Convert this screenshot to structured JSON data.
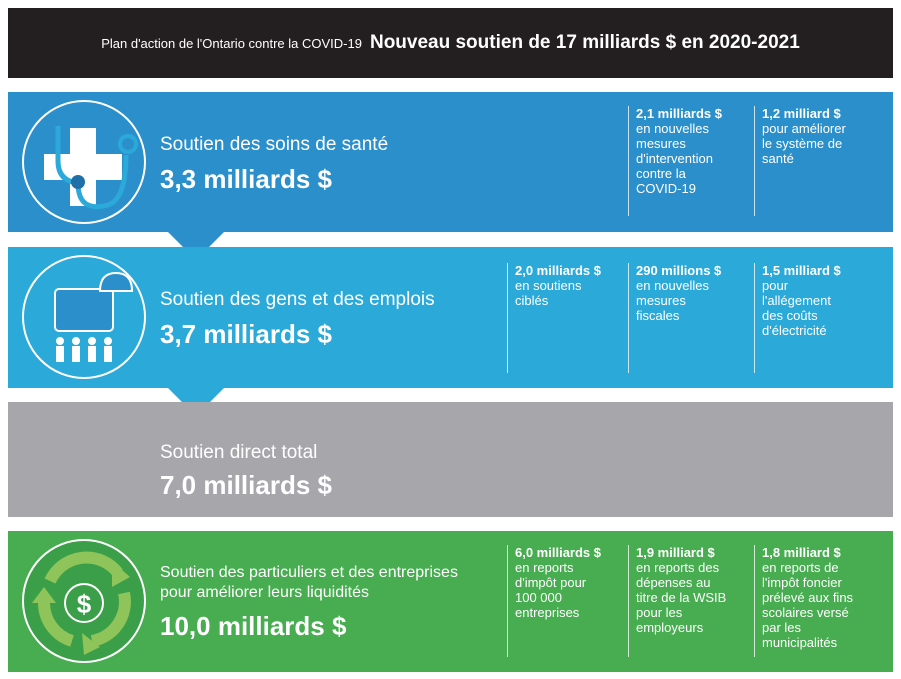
{
  "header": {
    "subtitle": "Plan d'action de l'Ontario contre la COVID-19",
    "title": "Nouveau soutien de 17 milliards $ en 2020-2021"
  },
  "colors": {
    "health": "#2b8fcb",
    "people": "#2ba9d9",
    "direct": "#a7a7ab",
    "liquidity": "#47ad50",
    "header": "#231f20"
  },
  "sections": [
    {
      "icon": "stethoscope-cross-icon",
      "label": "Soutien des soins de santé",
      "amount": "3,3 milliards $",
      "items": [
        {
          "amount": "2,1 milliards $",
          "text": "en nouvelles\nmesures\nd'intervention\ncontre la\nCOVID-19"
        },
        {
          "amount": "1,2 milliard $",
          "text": "pour améliorer\nle système de\nsanté"
        }
      ]
    },
    {
      "icon": "briefcase-people-icon",
      "label": "Soutien des gens et des emplois",
      "amount": "3,7 milliards $",
      "items": [
        {
          "amount": "2,0 milliards $",
          "text": "en soutiens\nciblés"
        },
        {
          "amount": "290 millions $",
          "text": "en nouvelles\nmesures\nfiscales"
        },
        {
          "amount": "1,5 milliard $",
          "text": "pour\nl'allégement\ndes coûts\nd'électricité"
        }
      ]
    },
    {
      "label": "Soutien direct total",
      "amount": "7,0 milliards $"
    },
    {
      "icon": "dollar-cycle-icon",
      "label": "Soutien des particuliers et des entreprises\npour améliorer leurs liquidités",
      "amount": "10,0 milliards $",
      "items": [
        {
          "amount": "6,0 milliards $",
          "text": "en reports\nd'impôt pour\n100 000\nentreprises"
        },
        {
          "amount": "1,9 milliard $",
          "text": "en reports des\ndépenses au\ntitre de la WSIB\npour les\nemployeurs"
        },
        {
          "amount": "1,8 milliard $",
          "text": "en reports de\nl'impôt foncier\nprélevé aux fins\nscolaires versé\npar les\nmunicipalités"
        }
      ]
    }
  ]
}
